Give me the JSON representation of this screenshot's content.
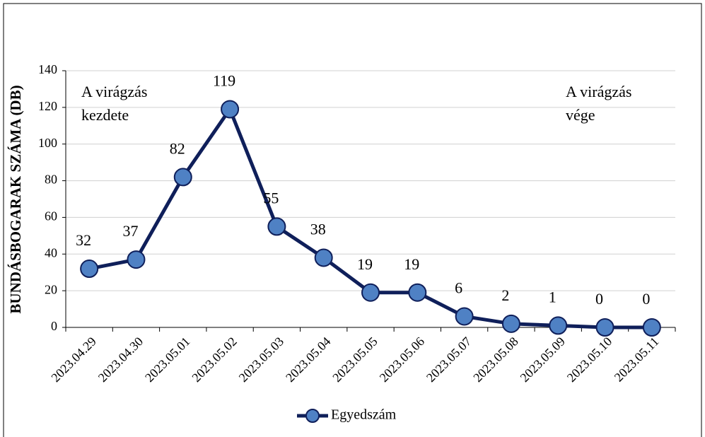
{
  "chart_data": {
    "type": "line",
    "y_label": "BUNDÁSBOGARAK SZÁMA (DB)",
    "categories": [
      "2023.04.29",
      "2023.04.30",
      "2023.05.01",
      "2023.05.02",
      "2023.05.03",
      "2023.05.04",
      "2023.05.05",
      "2023.05.06",
      "2023.05.07",
      "2023.05.08",
      "2023.05.09",
      "2023.05.10",
      "2023.05.11"
    ],
    "series": [
      {
        "name": "Egyedszám",
        "color": "#0f1f5a",
        "marker_color": "#4f81c4",
        "values": [
          32,
          37,
          82,
          119,
          55,
          38,
          19,
          19,
          6,
          2,
          1,
          0,
          0
        ]
      }
    ],
    "ylim": [
      0,
      140
    ],
    "yticks": [
      0,
      20,
      40,
      60,
      80,
      100,
      120,
      140
    ],
    "grid": true,
    "annotations": [
      [
        "A virágzás",
        "kezdete"
      ],
      [
        "A virágzás",
        "vége"
      ]
    ],
    "legend": "bottom"
  }
}
